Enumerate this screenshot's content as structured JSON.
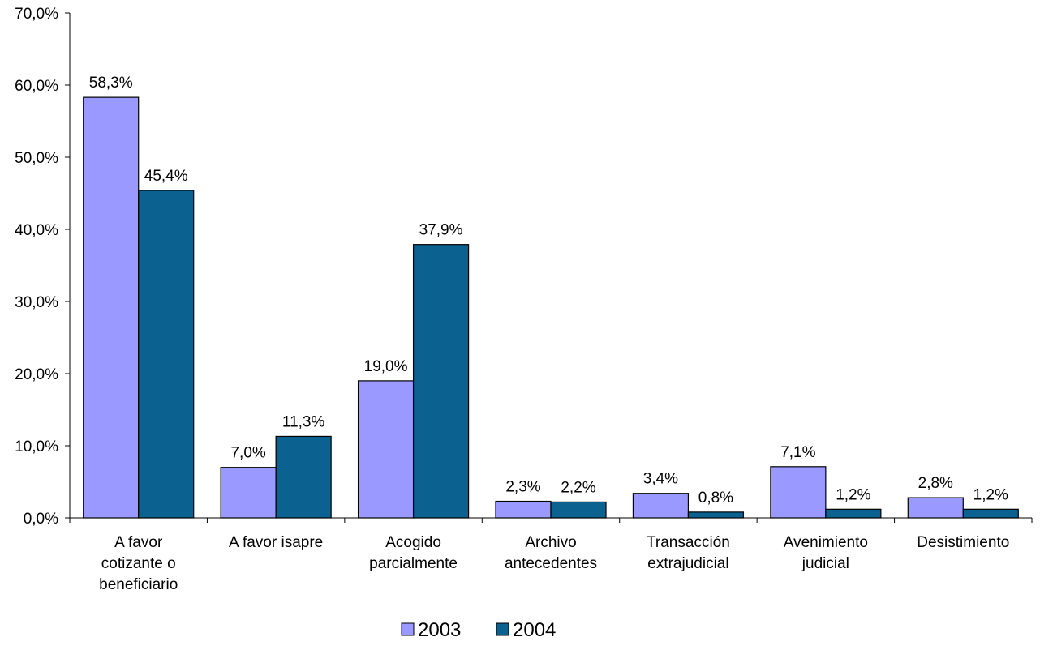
{
  "chart_data": {
    "type": "bar",
    "title": "",
    "xlabel": "",
    "ylabel": "",
    "ylim": [
      0,
      70
    ],
    "y_ticks": [
      "0,0%",
      "10,0%",
      "20,0%",
      "30,0%",
      "40,0%",
      "50,0%",
      "60,0%",
      "70,0%"
    ],
    "grid": false,
    "legend_position": "bottom",
    "categories": [
      [
        "A favor",
        "cotizante o",
        "beneficiario"
      ],
      [
        "A favor isapre"
      ],
      [
        "Acogido",
        "parcialmente"
      ],
      [
        "Archivo",
        "antecedentes"
      ],
      [
        "Transacción",
        "extrajudicial"
      ],
      [
        "Avenimiento",
        "judicial"
      ],
      [
        "Desistimiento"
      ]
    ],
    "series": [
      {
        "name": "2003",
        "color": "#9999ff",
        "values": [
          58.3,
          7.0,
          19.0,
          2.3,
          3.4,
          7.1,
          2.8
        ],
        "labels": [
          "58,3%",
          "7,0%",
          "19,0%",
          "2,3%",
          "3,4%",
          "7,1%",
          "2,8%"
        ]
      },
      {
        "name": "2004",
        "color": "#0b6190",
        "values": [
          45.4,
          11.3,
          37.9,
          2.2,
          0.8,
          1.2,
          1.2
        ],
        "labels": [
          "45,4%",
          "11,3%",
          "37,9%",
          "2,2%",
          "0,8%",
          "1,2%",
          "1,2%"
        ]
      }
    ]
  }
}
